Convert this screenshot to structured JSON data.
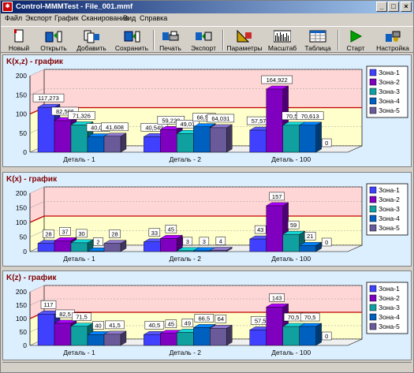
{
  "window": {
    "title": "Control-MMMTest - File_001.mmf",
    "icon": "app-logo-icon",
    "buttons": [
      "_",
      "□",
      "×"
    ]
  },
  "menu": [
    "Файл",
    "Экспорт",
    "График",
    "Сканирование",
    "Вид",
    "Справка"
  ],
  "toolbar": [
    {
      "label": "Новый",
      "icon": "new-document-icon"
    },
    {
      "label": "Открыть",
      "icon": "open-folder-icon"
    },
    {
      "label": "Добавить",
      "icon": "add-file-icon"
    },
    {
      "label": "Сохранить",
      "icon": "save-icon"
    },
    {
      "label": "Печать",
      "icon": "print-icon"
    },
    {
      "label": "Экспорт",
      "icon": "export-icon"
    },
    {
      "label": "Параметры",
      "icon": "parameters-icon"
    },
    {
      "label": "Масштаб",
      "icon": "scale-icon"
    },
    {
      "label": "Таблица",
      "icon": "table-icon"
    },
    {
      "label": "Старт",
      "icon": "play-icon"
    },
    {
      "label": "Настройка",
      "icon": "settings-icon"
    }
  ],
  "colors": {
    "zone1": "#4040ff",
    "zone2": "#8000c0",
    "zone3": "#10a0a0",
    "zone4": "#0060c0",
    "zone5": "#6a5a9a",
    "pink": "#ffd6d6",
    "yellow": "#ffffcc",
    "threshold": "#c00000",
    "panel_bg": "#dcefff"
  },
  "chart_data": [
    {
      "type": "bar",
      "title": "K(x,z) - график",
      "categories": [
        "Деталь - 1",
        "Деталь - 2",
        "Деталь -  100"
      ],
      "ylim": [
        0,
        200
      ],
      "yticks": [
        0,
        50,
        100,
        150,
        200
      ],
      "grid": true,
      "legend": "top-right",
      "series": [
        {
          "name": "Зона-1",
          "values": [
            117.273,
            40.549,
            57.578
          ],
          "labels": [
            "117,273",
            "40,549",
            "57,578"
          ]
        },
        {
          "name": "Зона-2",
          "values": [
            82.506,
            59.222,
            164.922
          ],
          "labels": [
            "82,506",
            "59,222",
            "164,922"
          ]
        },
        {
          "name": "Зона-3",
          "values": [
            71.326,
            49.01,
            70.52
          ],
          "labels": [
            "71,326",
            "49,01",
            "70,52"
          ]
        },
        {
          "name": "Зона-4",
          "values": [
            40.01,
            66.5,
            70.613
          ],
          "labels": [
            "40,01",
            "66,50",
            "70,613"
          ]
        },
        {
          "name": "Зона-5",
          "values": [
            41.608,
            64.031,
            0
          ],
          "labels": [
            "41,608",
            "64,031",
            "0"
          ]
        }
      ]
    },
    {
      "type": "bar",
      "title": "K(x) - график",
      "categories": [
        "Деталь - 1",
        "Деталь - 2",
        "Деталь -  100"
      ],
      "ylim": [
        0,
        200
      ],
      "yticks": [
        0,
        50,
        100,
        150,
        200
      ],
      "grid": true,
      "legend": "top-right",
      "series": [
        {
          "name": "Зона-1",
          "values": [
            28,
            33,
            43
          ],
          "labels": [
            "28",
            "33",
            "43"
          ]
        },
        {
          "name": "Зона-2",
          "values": [
            37,
            45,
            157
          ],
          "labels": [
            "37",
            "45",
            "157"
          ]
        },
        {
          "name": "Зона-3",
          "values": [
            30,
            3,
            59
          ],
          "labels": [
            "30",
            "3",
            "59"
          ]
        },
        {
          "name": "Зона-4",
          "values": [
            2,
            3,
            21
          ],
          "labels": [
            "2",
            "3",
            "21"
          ]
        },
        {
          "name": "Зона-5",
          "values": [
            28,
            4,
            0
          ],
          "labels": [
            "28",
            "4",
            "0"
          ]
        }
      ]
    },
    {
      "type": "bar",
      "title": "K(z) - график",
      "categories": [
        "Деталь - 1",
        "Деталь - 2",
        "Деталь -  100"
      ],
      "ylim": [
        0,
        200
      ],
      "yticks": [
        0,
        50,
        100,
        150,
        200
      ],
      "grid": true,
      "legend": "top-right",
      "series": [
        {
          "name": "Зона-1",
          "values": [
            117,
            40.5,
            57.5
          ],
          "labels": [
            "117",
            "40,5",
            "57,5"
          ]
        },
        {
          "name": "Зона-2",
          "values": [
            82.5,
            45,
            143
          ],
          "labels": [
            "82,5",
            "45",
            "143"
          ]
        },
        {
          "name": "Зона-3",
          "values": [
            71.5,
            49,
            70.5
          ],
          "labels": [
            "71,5",
            "49",
            "70,5"
          ]
        },
        {
          "name": "Зона-4",
          "values": [
            40,
            66.5,
            70.5
          ],
          "labels": [
            "40",
            "66,5",
            "70,5"
          ]
        },
        {
          "name": "Зона-5",
          "values": [
            41.5,
            64,
            0
          ],
          "labels": [
            "41,5",
            "64",
            "0"
          ]
        }
      ]
    }
  ]
}
